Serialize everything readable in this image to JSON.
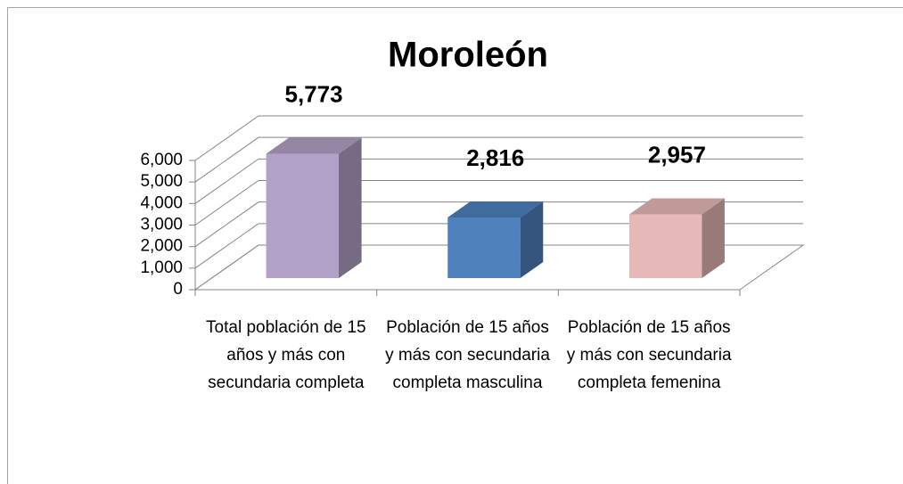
{
  "chart_data": {
    "type": "bar3d",
    "title": "Moroleón",
    "categories": [
      "Total población de 15 años y más con secundaria completa",
      "Población de 15 años y más con secundaria completa masculina",
      "Población de 15 años y más con secundaria completa femenina"
    ],
    "values": [
      5773,
      2816,
      2957
    ],
    "value_labels": [
      "5,773",
      "2,816",
      "2,957"
    ],
    "colors": [
      "#b3a2c7",
      "#4f81bd",
      "#e6b9b8"
    ],
    "ylim": [
      0,
      6000
    ],
    "yticks": [
      0,
      {
        "value": 1000,
        "label": "1,000"
      },
      {
        "value": 2000,
        "label": "2,000"
      },
      {
        "value": 3000,
        "label": "3,000"
      },
      {
        "value": 4000,
        "label": "4,000"
      },
      {
        "value": 5000,
        "label": "5,000"
      },
      {
        "value": 6000,
        "label": "6,000"
      }
    ],
    "grid": true
  }
}
